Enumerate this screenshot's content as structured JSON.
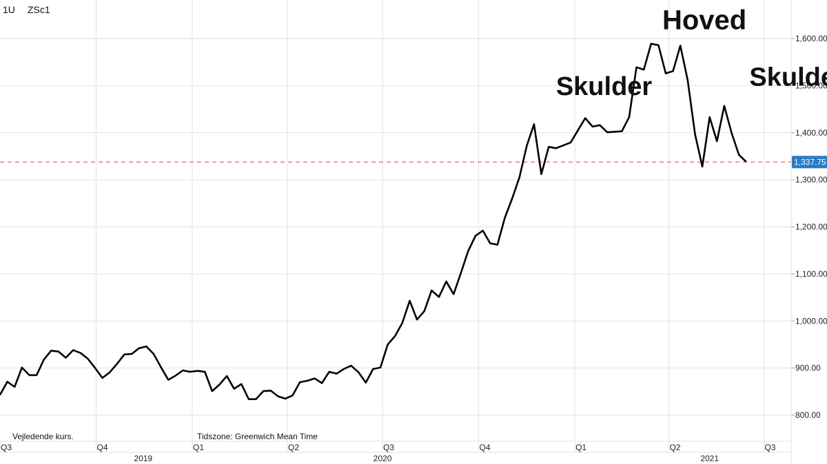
{
  "header": {
    "interval": "1U",
    "symbol": "ZSc1"
  },
  "footer": {
    "note_left": "Vejledende kurs.",
    "timezone": "Tidszone: Greenwich Mean Time"
  },
  "last_price": {
    "label": "1,337.75",
    "value": 1337.75,
    "color": "#2a7bc4"
  },
  "colors": {
    "line": "#000000",
    "reference_line": "#e05555"
  },
  "annotations": [
    {
      "text": "Skulder",
      "date": "2021-01-29",
      "y": 1480
    },
    {
      "text": "Hoved",
      "date": "2021-05-05",
      "y": 1620
    },
    {
      "text": "Skulder",
      "date": "2021-08-02",
      "y": 1500
    }
  ],
  "chart_data": {
    "type": "line",
    "title": "",
    "xlabel": "",
    "ylabel": "",
    "x_axis": {
      "quarter_ticks": [
        {
          "label": "Q3",
          "date": "2019-07-01"
        },
        {
          "label": "Q4",
          "date": "2019-10-01"
        },
        {
          "label": "Q1",
          "date": "2020-01-01"
        },
        {
          "label": "Q2",
          "date": "2020-04-01"
        },
        {
          "label": "Q3",
          "date": "2020-07-01"
        },
        {
          "label": "Q4",
          "date": "2020-10-01"
        },
        {
          "label": "Q1",
          "date": "2021-01-01"
        },
        {
          "label": "Q2",
          "date": "2021-04-01"
        },
        {
          "label": "Q3",
          "date": "2021-07-01"
        }
      ],
      "year_labels": [
        {
          "label": "2019",
          "date": "2019-11-15"
        },
        {
          "label": "2020",
          "date": "2020-07-01"
        },
        {
          "label": "2021",
          "date": "2021-05-10"
        }
      ]
    },
    "y_axis": {
      "position": "right",
      "ticks": [
        {
          "value": 800,
          "label": "800.00"
        },
        {
          "value": 900,
          "label": "900.00"
        },
        {
          "value": 1000,
          "label": "1,000.00"
        },
        {
          "value": 1100,
          "label": "1,100.00"
        },
        {
          "value": 1200,
          "label": "1,200.00"
        },
        {
          "value": 1300,
          "label": "1,300.00"
        },
        {
          "value": 1400,
          "label": "1,400.00"
        },
        {
          "value": 1500,
          "label": "1,500.00"
        },
        {
          "value": 1600,
          "label": "1,600.00"
        }
      ],
      "ylim": [
        730,
        1680
      ]
    },
    "grid": true,
    "series": [
      {
        "values": [
          [
            "2019-07-01",
            843
          ],
          [
            "2019-07-08",
            871
          ],
          [
            "2019-07-15",
            860
          ],
          [
            "2019-07-22",
            901
          ],
          [
            "2019-07-29",
            885
          ],
          [
            "2019-08-05",
            885
          ],
          [
            "2019-08-12",
            918
          ],
          [
            "2019-08-19",
            937
          ],
          [
            "2019-08-26",
            935
          ],
          [
            "2019-09-02",
            922
          ],
          [
            "2019-09-09",
            938
          ],
          [
            "2019-09-16",
            932
          ],
          [
            "2019-09-23",
            920
          ],
          [
            "2019-09-30",
            900
          ],
          [
            "2019-10-07",
            879
          ],
          [
            "2019-10-14",
            891
          ],
          [
            "2019-10-21",
            909
          ],
          [
            "2019-10-28",
            929
          ],
          [
            "2019-11-04",
            930
          ],
          [
            "2019-11-11",
            942
          ],
          [
            "2019-11-18",
            946
          ],
          [
            "2019-11-25",
            930
          ],
          [
            "2019-12-02",
            902
          ],
          [
            "2019-12-09",
            875
          ],
          [
            "2019-12-16",
            884
          ],
          [
            "2019-12-23",
            895
          ],
          [
            "2019-12-30",
            892
          ],
          [
            "2020-01-06",
            894
          ],
          [
            "2020-01-13",
            892
          ],
          [
            "2020-01-20",
            851
          ],
          [
            "2020-01-27",
            865
          ],
          [
            "2020-02-03",
            883
          ],
          [
            "2020-02-10",
            856
          ],
          [
            "2020-02-17",
            866
          ],
          [
            "2020-02-24",
            834
          ],
          [
            "2020-03-02",
            834
          ],
          [
            "2020-03-09",
            851
          ],
          [
            "2020-03-16",
            852
          ],
          [
            "2020-03-23",
            840
          ],
          [
            "2020-03-30",
            835
          ],
          [
            "2020-04-06",
            842
          ],
          [
            "2020-04-13",
            870
          ],
          [
            "2020-04-20",
            873
          ],
          [
            "2020-04-27",
            878
          ],
          [
            "2020-05-04",
            868
          ],
          [
            "2020-05-11",
            892
          ],
          [
            "2020-05-18",
            888
          ],
          [
            "2020-05-25",
            898
          ],
          [
            "2020-06-01",
            905
          ],
          [
            "2020-06-08",
            891
          ],
          [
            "2020-06-15",
            869
          ],
          [
            "2020-06-22",
            898
          ],
          [
            "2020-06-29",
            901
          ],
          [
            "2020-07-06",
            950
          ],
          [
            "2020-07-13",
            968
          ],
          [
            "2020-07-20",
            996
          ],
          [
            "2020-07-27",
            1043
          ],
          [
            "2020-08-03",
            1003
          ],
          [
            "2020-08-10",
            1021
          ],
          [
            "2020-08-17",
            1065
          ],
          [
            "2020-08-24",
            1051
          ],
          [
            "2020-08-31",
            1084
          ],
          [
            "2020-09-07",
            1057
          ],
          [
            "2020-09-14",
            1102
          ],
          [
            "2020-09-21",
            1149
          ],
          [
            "2020-09-28",
            1181
          ],
          [
            "2020-10-05",
            1192
          ],
          [
            "2020-10-12",
            1165
          ],
          [
            "2020-10-19",
            1162
          ],
          [
            "2020-10-26",
            1219
          ],
          [
            "2020-11-02",
            1260
          ],
          [
            "2020-11-09",
            1305
          ],
          [
            "2020-11-16",
            1372
          ],
          [
            "2020-11-23",
            1418
          ],
          [
            "2020-11-30",
            1312
          ],
          [
            "2020-12-07",
            1370
          ],
          [
            "2020-12-14",
            1367
          ],
          [
            "2020-12-21",
            1373
          ],
          [
            "2020-12-28",
            1379
          ],
          [
            "2021-01-04",
            1405
          ],
          [
            "2021-01-11",
            1431
          ],
          [
            "2021-01-18",
            1413
          ],
          [
            "2021-01-25",
            1416
          ],
          [
            "2021-02-01",
            1401
          ],
          [
            "2021-02-08",
            1402
          ],
          [
            "2021-02-15",
            1403
          ],
          [
            "2021-02-22",
            1433
          ],
          [
            "2021-03-01",
            1539
          ],
          [
            "2021-03-08",
            1534
          ],
          [
            "2021-03-15",
            1589
          ],
          [
            "2021-03-22",
            1586
          ],
          [
            "2021-03-29",
            1526
          ],
          [
            "2021-04-05",
            1531
          ],
          [
            "2021-04-12",
            1585
          ],
          [
            "2021-04-19",
            1512
          ],
          [
            "2021-04-26",
            1397
          ],
          [
            "2021-05-03",
            1328
          ],
          [
            "2021-05-10",
            1433
          ],
          [
            "2021-05-17",
            1382
          ],
          [
            "2021-05-24",
            1457
          ],
          [
            "2021-05-31",
            1400
          ],
          [
            "2021-06-07",
            1353
          ],
          [
            "2021-06-14",
            1338
          ]
        ]
      }
    ]
  }
}
